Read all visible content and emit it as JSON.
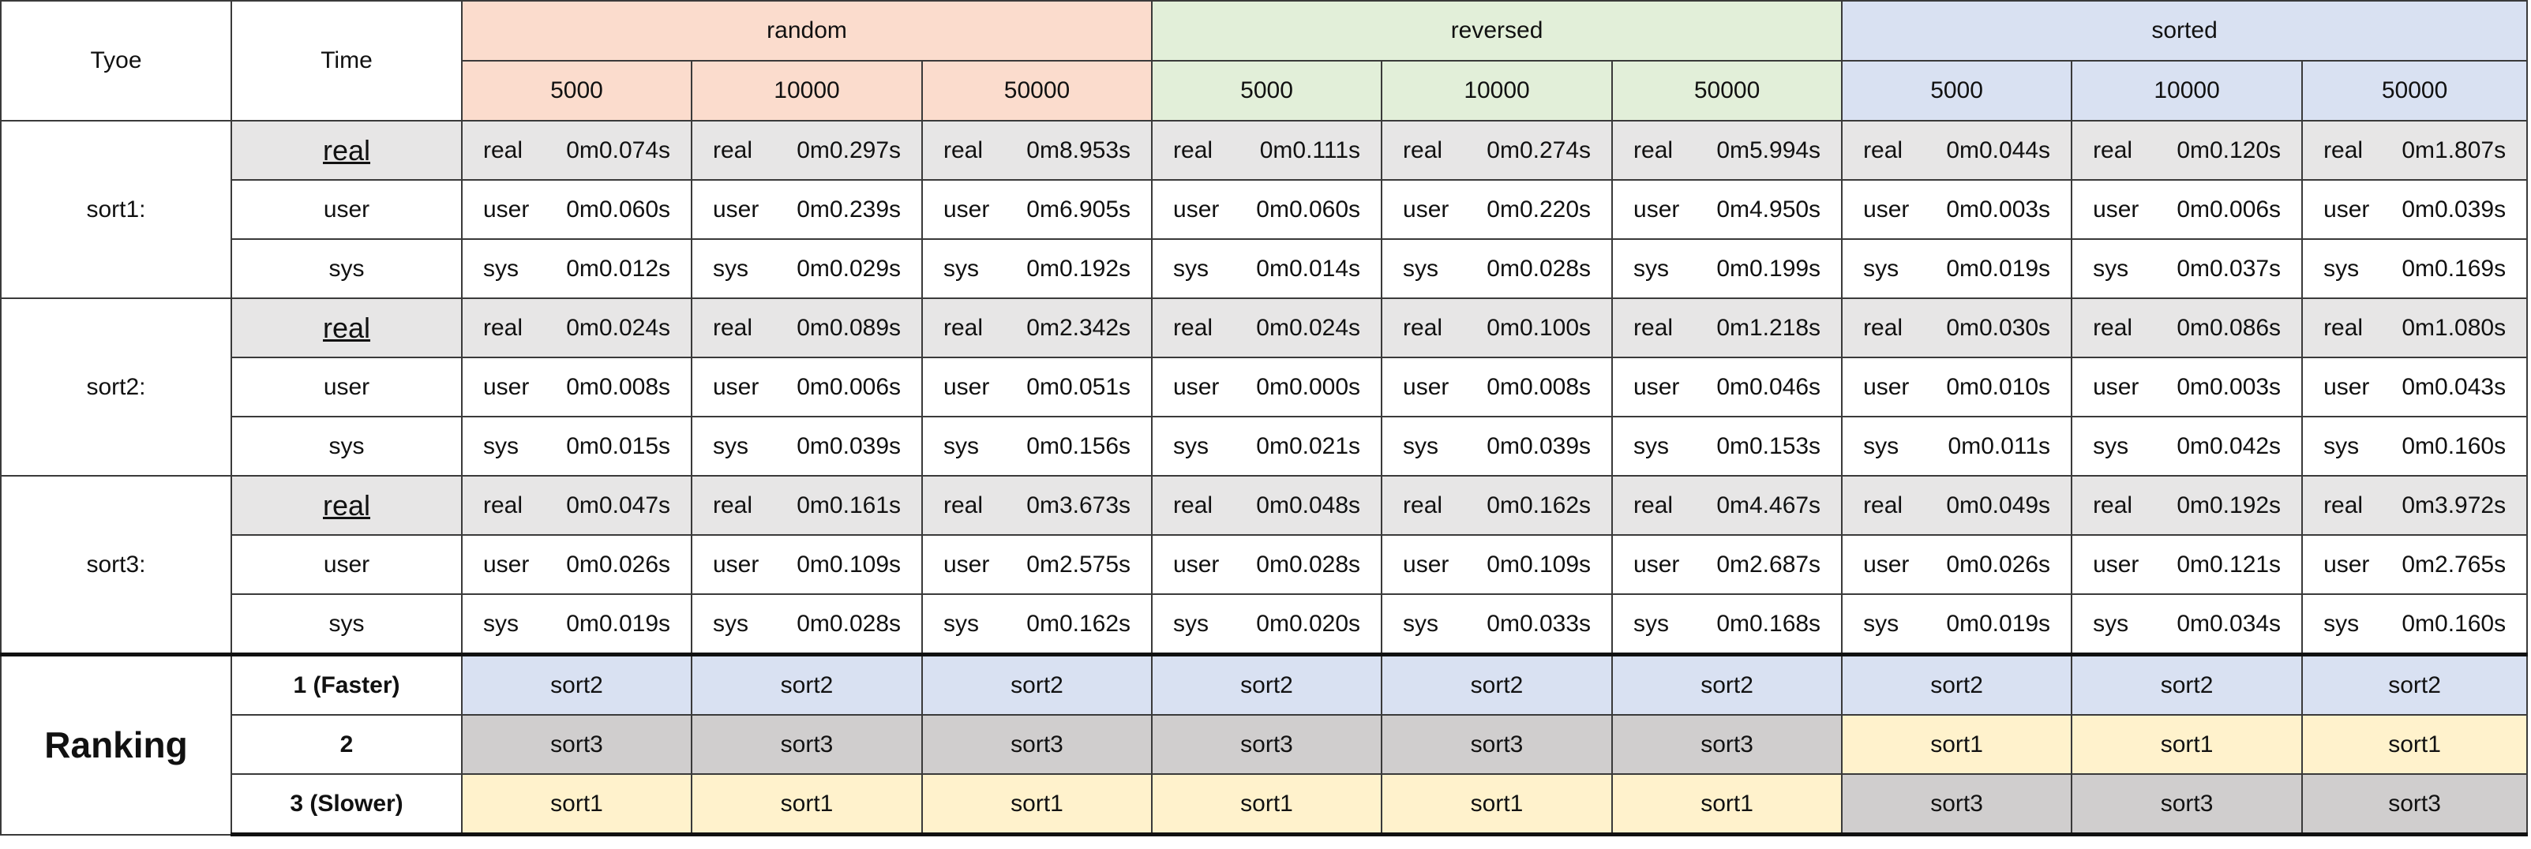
{
  "header": {
    "type_label": "Tyoe",
    "time_label": "Time",
    "groups": [
      {
        "name": "random",
        "sizes": [
          "5000",
          "10000",
          "50000"
        ],
        "color": "#fbdccd"
      },
      {
        "name": "reversed",
        "sizes": [
          "5000",
          "10000",
          "50000"
        ],
        "color": "#e2efd9"
      },
      {
        "name": "sorted",
        "sizes": [
          "5000",
          "10000",
          "50000"
        ],
        "color": "#d9e1f2"
      }
    ]
  },
  "sorts": [
    {
      "name": "sort1:",
      "rows": [
        {
          "metric": "real",
          "values": [
            "0m0.074s",
            "0m0.297s",
            "0m8.953s",
            "0m0.111s",
            "0m0.274s",
            "0m5.994s",
            "0m0.044s",
            "0m0.120s",
            "0m1.807s"
          ]
        },
        {
          "metric": "user",
          "values": [
            "0m0.060s",
            "0m0.239s",
            "0m6.905s",
            "0m0.060s",
            "0m0.220s",
            "0m4.950s",
            "0m0.003s",
            "0m0.006s",
            "0m0.039s"
          ]
        },
        {
          "metric": "sys",
          "values": [
            "0m0.012s",
            "0m0.029s",
            "0m0.192s",
            "0m0.014s",
            "0m0.028s",
            "0m0.199s",
            "0m0.019s",
            "0m0.037s",
            "0m0.169s"
          ]
        }
      ]
    },
    {
      "name": "sort2:",
      "rows": [
        {
          "metric": "real",
          "values": [
            "0m0.024s",
            "0m0.089s",
            "0m2.342s",
            "0m0.024s",
            "0m0.100s",
            "0m1.218s",
            "0m0.030s",
            "0m0.086s",
            "0m1.080s"
          ]
        },
        {
          "metric": "user",
          "values": [
            "0m0.008s",
            "0m0.006s",
            "0m0.051s",
            "0m0.000s",
            "0m0.008s",
            "0m0.046s",
            "0m0.010s",
            "0m0.003s",
            "0m0.043s"
          ]
        },
        {
          "metric": "sys",
          "values": [
            "0m0.015s",
            "0m0.039s",
            "0m0.156s",
            "0m0.021s",
            "0m0.039s",
            "0m0.153s",
            "0m0.011s",
            "0m0.042s",
            "0m0.160s"
          ]
        }
      ]
    },
    {
      "name": "sort3:",
      "rows": [
        {
          "metric": "real",
          "values": [
            "0m0.047s",
            "0m0.161s",
            "0m3.673s",
            "0m0.048s",
            "0m0.162s",
            "0m4.467s",
            "0m0.049s",
            "0m0.192s",
            "0m3.972s"
          ]
        },
        {
          "metric": "user",
          "values": [
            "0m0.026s",
            "0m0.109s",
            "0m2.575s",
            "0m0.028s",
            "0m0.109s",
            "0m2.687s",
            "0m0.026s",
            "0m0.121s",
            "0m2.765s"
          ]
        },
        {
          "metric": "sys",
          "values": [
            "0m0.019s",
            "0m0.028s",
            "0m0.162s",
            "0m0.020s",
            "0m0.033s",
            "0m0.168s",
            "0m0.019s",
            "0m0.034s",
            "0m0.160s"
          ]
        }
      ]
    }
  ],
  "ranking": {
    "title": "Ranking",
    "rows": [
      {
        "label": "1 (Faster)",
        "values": [
          "sort2",
          "sort2",
          "sort2",
          "sort2",
          "sort2",
          "sort2",
          "sort2",
          "sort2",
          "sort2"
        ],
        "colors": [
          "blue",
          "blue",
          "blue",
          "blue",
          "blue",
          "blue",
          "blue",
          "blue",
          "blue"
        ]
      },
      {
        "label": "2",
        "values": [
          "sort3",
          "sort3",
          "sort3",
          "sort3",
          "sort3",
          "sort3",
          "sort1",
          "sort1",
          "sort1"
        ],
        "colors": [
          "gray",
          "gray",
          "gray",
          "gray",
          "gray",
          "gray",
          "yellow",
          "yellow",
          "yellow"
        ]
      },
      {
        "label": "3 (Slower)",
        "values": [
          "sort1",
          "sort1",
          "sort1",
          "sort1",
          "sort1",
          "sort1",
          "sort3",
          "sort3",
          "sort3"
        ],
        "colors": [
          "yellow",
          "yellow",
          "yellow",
          "yellow",
          "yellow",
          "yellow",
          "gray",
          "gray",
          "gray"
        ]
      }
    ]
  }
}
